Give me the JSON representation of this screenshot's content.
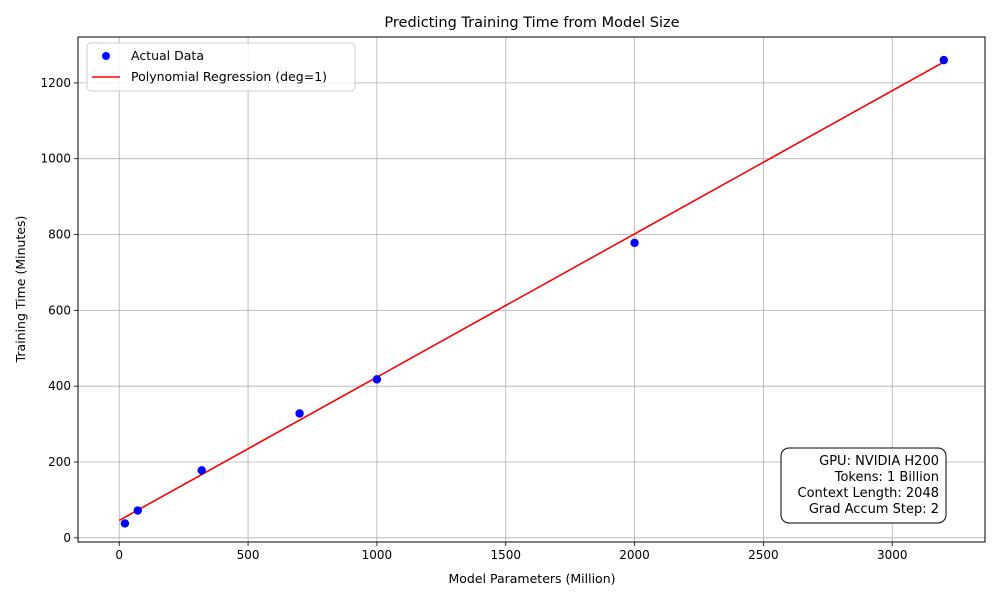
{
  "chart_data": {
    "type": "scatter",
    "title": "Predicting Training Time from Model Size",
    "xlabel": "Model Parameters (Million)",
    "ylabel": "Training Time (Minutes)",
    "xlim": [
      -160,
      3360
    ],
    "ylim": [
      -11,
      1321
    ],
    "xticks": [
      0,
      500,
      1000,
      1500,
      2000,
      2500,
      3000
    ],
    "yticks": [
      0,
      200,
      400,
      600,
      800,
      1000,
      1200
    ],
    "grid": true,
    "legend_position": "top-left",
    "series": [
      {
        "name": "Actual Data",
        "kind": "scatter",
        "color": "#0000ff",
        "x": [
          22,
          72,
          320,
          700,
          1000,
          2000,
          3200
        ],
        "y": [
          38,
          72,
          178,
          328,
          418,
          778,
          1260
        ]
      },
      {
        "name": "Polynomial Regression (deg=1)",
        "kind": "line",
        "color": "#ff0000",
        "x": [
          0,
          3200
        ],
        "y": [
          46,
          1255
        ]
      }
    ],
    "annotation": {
      "position": "bottom-right",
      "lines": [
        "GPU: NVIDIA H200",
        "Tokens: 1 Billion",
        "Context Length: 2048",
        "Grad Accum Step: 2"
      ]
    }
  }
}
